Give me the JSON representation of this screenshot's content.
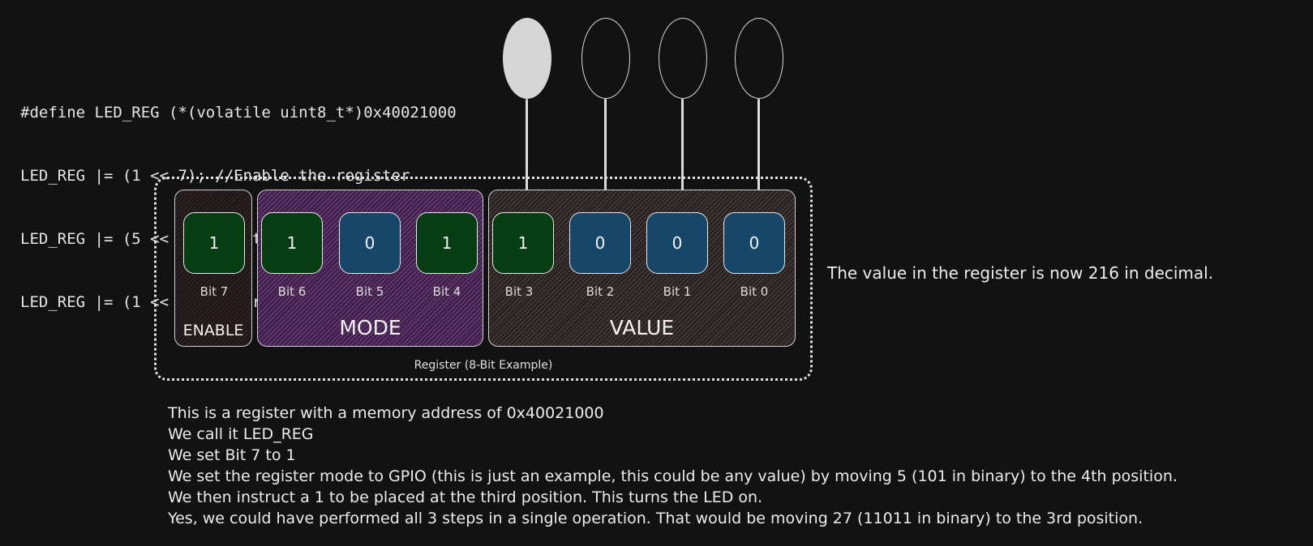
{
  "code_lines": [
    "#define LED_REG (*(volatile uint8_t*)0x40021000",
    "LED_REG |= (1 << 7); //Enable the register",
    "LED_REG |= (5 << 4); //Set the register mode",
    "LED_REG |= (1 << 3); //Turn on LED (bit 3)"
  ],
  "balloons": [
    {
      "state": "on"
    },
    {
      "state": "off"
    },
    {
      "state": "off"
    },
    {
      "state": "off"
    }
  ],
  "groups": {
    "enable": "ENABLE",
    "mode": "MODE",
    "value": "VALUE"
  },
  "bits": [
    {
      "value": "1",
      "label": "Bit 7"
    },
    {
      "value": "1",
      "label": "Bit 6"
    },
    {
      "value": "0",
      "label": "Bit 5"
    },
    {
      "value": "1",
      "label": "Bit 4"
    },
    {
      "value": "1",
      "label": "Bit 3"
    },
    {
      "value": "0",
      "label": "Bit 2"
    },
    {
      "value": "0",
      "label": "Bit 1"
    },
    {
      "value": "0",
      "label": "Bit 0"
    }
  ],
  "register_label": "Register (8-Bit Example)",
  "side_note": "The value in the register is now 216 in decimal.",
  "description": [
    "This is a register with a memory address of 0x40021000",
    "We call it LED_REG",
    "We set Bit 7 to 1",
    "We set the register mode to GPIO (this is just an example, this could be any value) by moving 5 (101 in binary) to the 4th position.",
    "We then instruct a 1 to be placed at the third position. This turns the LED on.",
    "Yes, we could have performed all 3 steps in a single operation. That would be moving 27 (11011 in binary) to the 3rd position."
  ],
  "colors": {
    "bit_one": "#063d12",
    "bit_zero": "#164668",
    "mode_hatch": "#7a3b8a",
    "background": "#121212"
  }
}
